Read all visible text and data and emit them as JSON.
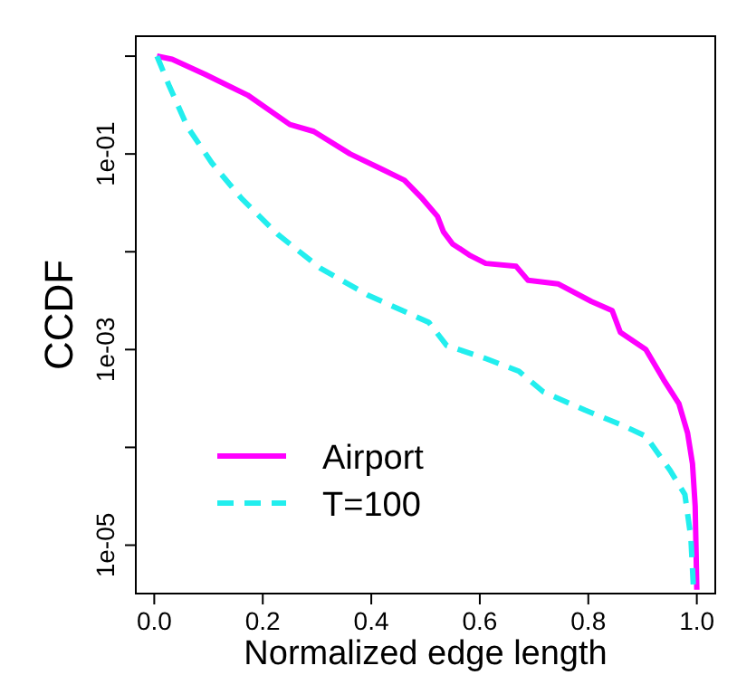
{
  "chart_data": {
    "type": "line",
    "xlabel": "Normalized edge length",
    "ylabel": "CCDF",
    "log": "y",
    "legend": "bottom left",
    "grid": false,
    "marker": "none",
    "xlim": [
      -0.034,
      1.034
    ],
    "xticks": [
      {
        "value": 0,
        "label": "0.0"
      },
      {
        "value": 0.2,
        "label": "0.2"
      },
      {
        "value": 0.4,
        "label": "0.4"
      },
      {
        "value": 0.6,
        "label": "0.6"
      },
      {
        "value": 0.8,
        "label": "0.8"
      },
      {
        "value": 1,
        "label": "1.0"
      }
    ],
    "ylim": [
      3.2e-06,
      1.6
    ],
    "yticks": [
      {
        "value": 1,
        "label": null
      },
      {
        "value": 0.1,
        "label": "1e-01"
      },
      {
        "value": 0.01,
        "label": null
      },
      {
        "value": 0.001,
        "label": "1e-03"
      },
      {
        "value": 0.0001,
        "label": null
      },
      {
        "value": 1e-05,
        "label": "1e-05"
      }
    ],
    "series": [
      {
        "name": "Airport",
        "color": "#ff00ff",
        "line_style": "solid",
        "x": [
          0.005,
          0.033,
          0.094,
          0.172,
          0.25,
          0.294,
          0.361,
          0.417,
          0.461,
          0.494,
          0.522,
          0.533,
          0.55,
          0.583,
          0.611,
          0.667,
          0.689,
          0.744,
          0.806,
          0.844,
          0.859,
          0.906,
          0.939,
          0.967,
          0.983,
          0.992,
          0.997,
          1.0
        ],
        "values": [
          1,
          0.93,
          0.65,
          0.4,
          0.2,
          0.17,
          0.1,
          0.071,
          0.054,
          0.035,
          0.023,
          0.016,
          0.012,
          0.0091,
          0.0076,
          0.0071,
          0.0051,
          0.0047,
          0.0031,
          0.0025,
          0.0015,
          0.001,
          0.00049,
          0.00028,
          0.00014,
          6.8e-05,
          2.5e-05,
          3.5e-06
        ]
      },
      {
        "name": "T=100",
        "color": "#22eeee",
        "line_style": "dashed",
        "x": [
          0.005,
          0.028,
          0.061,
          0.106,
          0.161,
          0.228,
          0.306,
          0.394,
          0.506,
          0.539,
          0.611,
          0.672,
          0.717,
          0.794,
          0.861,
          0.906,
          0.95,
          0.978,
          0.989,
          0.994
        ],
        "values": [
          1,
          0.49,
          0.19,
          0.081,
          0.035,
          0.015,
          0.0068,
          0.0036,
          0.0019,
          0.0011,
          0.00081,
          0.0006,
          0.00037,
          0.00024,
          0.00017,
          0.00013,
          5.9e-05,
          3.3e-05,
          1.2e-05,
          3.5e-06
        ]
      }
    ]
  }
}
